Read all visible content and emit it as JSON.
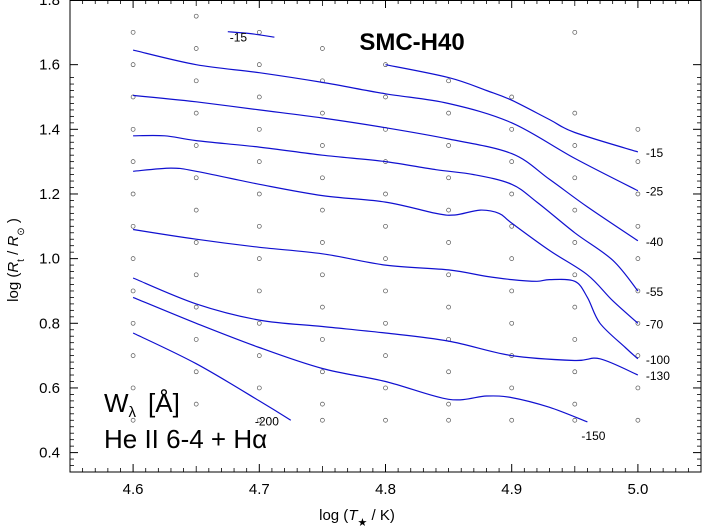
{
  "chart_data": {
    "type": "line",
    "title": "SMC-H40",
    "xlabel": "log (T* / K)",
    "ylabel": "log (Rt / R⊙ )",
    "xlim": [
      4.55,
      5.05
    ],
    "ylim": [
      0.34,
      1.8
    ],
    "xticks": [
      4.6,
      4.7,
      4.8,
      4.9,
      5.0
    ],
    "yticks": [
      0.4,
      0.6,
      0.8,
      1.0,
      1.2,
      1.4,
      1.6,
      1.8
    ],
    "xtick_labels": [
      "4.6",
      "4.7",
      "4.8",
      "4.9",
      "5.0"
    ],
    "ytick_labels": [
      "0.4",
      "0.6",
      "0.8",
      "1.0",
      "1.2",
      "1.4",
      "1.6",
      "1.8"
    ],
    "grid": false,
    "annotation": {
      "line1": "W",
      "line1_sub": "λ",
      "line1_unit": "[Å]",
      "line2": "He II 6-4 + Hα"
    },
    "model_grid_points": {
      "columns": [
        {
          "x": 4.6,
          "y": [
            0.5,
            0.6,
            0.7,
            0.8,
            0.9,
            1.0,
            1.1,
            1.2,
            1.3,
            1.4,
            1.5,
            1.6,
            1.7
          ]
        },
        {
          "x": 4.65,
          "y": [
            0.55,
            0.65,
            0.75,
            0.85,
            0.95,
            1.05,
            1.15,
            1.25,
            1.35,
            1.45,
            1.55,
            1.65,
            1.75
          ]
        },
        {
          "x": 4.7,
          "y": [
            0.5,
            0.6,
            0.7,
            0.8,
            0.9,
            1.0,
            1.1,
            1.2,
            1.3,
            1.4,
            1.5,
            1.6,
            1.7
          ]
        },
        {
          "x": 4.75,
          "y": [
            0.5,
            0.55,
            0.65,
            0.75,
            0.85,
            0.95,
            1.05,
            1.15,
            1.25,
            1.35,
            1.45,
            1.55,
            1.65
          ]
        },
        {
          "x": 4.8,
          "y": [
            0.5,
            0.6,
            0.7,
            0.8,
            0.9,
            1.0,
            1.1,
            1.2,
            1.3,
            1.4,
            1.5,
            1.6
          ]
        },
        {
          "x": 4.85,
          "y": [
            0.5,
            0.55,
            0.65,
            0.75,
            0.85,
            0.95,
            1.05,
            1.15,
            1.25,
            1.35,
            1.45,
            1.55
          ]
        },
        {
          "x": 4.9,
          "y": [
            0.5,
            0.6,
            0.7,
            0.8,
            0.9,
            1.0,
            1.1,
            1.2,
            1.3,
            1.4,
            1.5
          ]
        },
        {
          "x": 4.95,
          "y": [
            0.5,
            0.55,
            0.65,
            0.75,
            0.85,
            0.95,
            1.05,
            1.15,
            1.25,
            1.35,
            1.45,
            1.7
          ]
        },
        {
          "x": 5.0,
          "y": [
            0.5,
            0.6,
            0.7,
            0.8,
            0.9,
            1.0,
            1.1,
            1.2,
            1.3,
            1.4
          ]
        }
      ]
    },
    "series": [
      {
        "name": "-15",
        "label": "-15",
        "points": [
          [
            4.675,
            1.702
          ],
          [
            4.693,
            1.696
          ],
          [
            4.712,
            1.685
          ]
        ]
      },
      {
        "name": "-15",
        "label": "-15",
        "points": [
          [
            4.8,
            1.6
          ],
          [
            4.85,
            1.56
          ],
          [
            4.88,
            1.52
          ],
          [
            4.9,
            1.49
          ],
          [
            4.93,
            1.43
          ],
          [
            4.95,
            1.39
          ],
          [
            5.0,
            1.33
          ]
        ]
      },
      {
        "name": "-25",
        "label": "-25",
        "points": [
          [
            4.6,
            1.645
          ],
          [
            4.65,
            1.6
          ],
          [
            4.7,
            1.575
          ],
          [
            4.75,
            1.545
          ],
          [
            4.8,
            1.51
          ],
          [
            4.85,
            1.48
          ],
          [
            4.9,
            1.42
          ],
          [
            4.95,
            1.31
          ],
          [
            5.0,
            1.21
          ]
        ]
      },
      {
        "name": "-40",
        "label": "-40",
        "points": [
          [
            4.6,
            1.505
          ],
          [
            4.65,
            1.485
          ],
          [
            4.7,
            1.46
          ],
          [
            4.75,
            1.435
          ],
          [
            4.8,
            1.405
          ],
          [
            4.85,
            1.37
          ],
          [
            4.9,
            1.325
          ],
          [
            4.93,
            1.245
          ],
          [
            4.96,
            1.16
          ],
          [
            5.0,
            1.055
          ]
        ]
      },
      {
        "name": "-55",
        "label": "-55",
        "points": [
          [
            4.6,
            1.38
          ],
          [
            4.625,
            1.38
          ],
          [
            4.65,
            1.365
          ],
          [
            4.7,
            1.345
          ],
          [
            4.75,
            1.32
          ],
          [
            4.8,
            1.3
          ],
          [
            4.84,
            1.275
          ],
          [
            4.87,
            1.26
          ],
          [
            4.9,
            1.23
          ],
          [
            4.92,
            1.175
          ],
          [
            4.95,
            1.08
          ],
          [
            4.98,
            0.995
          ],
          [
            5.0,
            0.9
          ]
        ]
      },
      {
        "name": "-70",
        "label": "-70",
        "points": [
          [
            4.6,
            1.27
          ],
          [
            4.63,
            1.28
          ],
          [
            4.65,
            1.27
          ],
          [
            4.7,
            1.23
          ],
          [
            4.75,
            1.195
          ],
          [
            4.8,
            1.175
          ],
          [
            4.84,
            1.14
          ],
          [
            4.855,
            1.135
          ],
          [
            4.875,
            1.15
          ],
          [
            4.89,
            1.14
          ],
          [
            4.9,
            1.11
          ],
          [
            4.93,
            1.025
          ],
          [
            4.96,
            0.95
          ],
          [
            4.98,
            0.87
          ],
          [
            5.0,
            0.8
          ]
        ]
      },
      {
        "name": "-100",
        "label": "-100",
        "points": [
          [
            4.6,
            1.09
          ],
          [
            4.65,
            1.06
          ],
          [
            4.7,
            1.035
          ],
          [
            4.75,
            1.015
          ],
          [
            4.8,
            0.98
          ],
          [
            4.85,
            0.965
          ],
          [
            4.88,
            0.945
          ],
          [
            4.9,
            0.935
          ],
          [
            4.92,
            0.93
          ],
          [
            4.93,
            0.935
          ],
          [
            4.95,
            0.93
          ],
          [
            4.96,
            0.88
          ],
          [
            4.97,
            0.8
          ],
          [
            4.99,
            0.725
          ],
          [
            5.0,
            0.69
          ]
        ]
      },
      {
        "name": "-130",
        "label": "-130",
        "points": [
          [
            4.6,
            0.94
          ],
          [
            4.65,
            0.86
          ],
          [
            4.7,
            0.81
          ],
          [
            4.75,
            0.79
          ],
          [
            4.8,
            0.77
          ],
          [
            4.85,
            0.745
          ],
          [
            4.9,
            0.7
          ],
          [
            4.95,
            0.685
          ],
          [
            4.97,
            0.69
          ],
          [
            5.0,
            0.64
          ]
        ]
      },
      {
        "name": "-150",
        "label": "-150",
        "points": [
          [
            4.6,
            0.88
          ],
          [
            4.65,
            0.8
          ],
          [
            4.7,
            0.725
          ],
          [
            4.75,
            0.66
          ],
          [
            4.8,
            0.62
          ],
          [
            4.85,
            0.565
          ],
          [
            4.88,
            0.575
          ],
          [
            4.9,
            0.57
          ],
          [
            4.93,
            0.54
          ],
          [
            4.96,
            0.495
          ]
        ]
      },
      {
        "name": "-200",
        "label": "-200",
        "points": [
          [
            4.6,
            0.77
          ],
          [
            4.65,
            0.675
          ],
          [
            4.7,
            0.56
          ],
          [
            4.725,
            0.5
          ]
        ]
      }
    ]
  }
}
